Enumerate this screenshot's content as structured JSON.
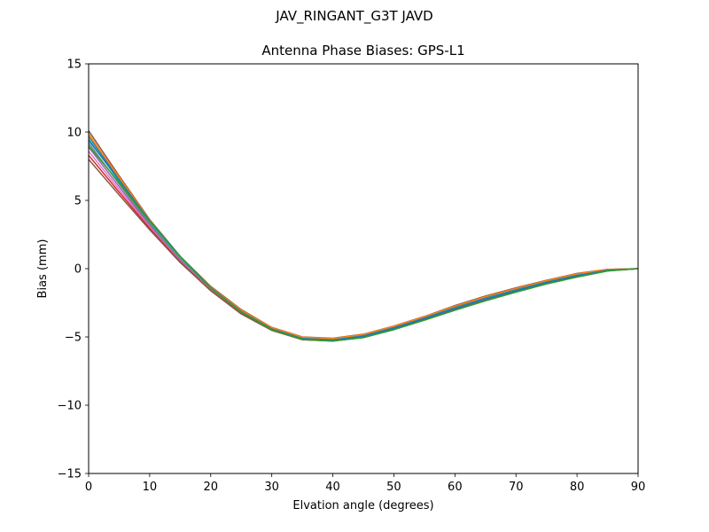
{
  "figure": {
    "suptitle": "JAV_RINGANT_G3T JAVD"
  },
  "chart_data": {
    "type": "line",
    "title": "Antenna Phase Biases: GPS-L1",
    "xlabel": "Elvation angle (degrees)",
    "ylabel": "Bias (mm)",
    "xlim": [
      0,
      90
    ],
    "ylim": [
      -15,
      15
    ],
    "xticks": [
      0,
      10,
      20,
      30,
      40,
      50,
      60,
      70,
      80,
      90
    ],
    "yticks": [
      -15,
      -10,
      -5,
      0,
      5,
      10,
      15
    ],
    "ytick_labels": [
      "−15",
      "−10",
      "−5",
      "0",
      "5",
      "10",
      "15"
    ],
    "grid": false,
    "legend": "none",
    "x": [
      0,
      5,
      10,
      15,
      20,
      25,
      30,
      35,
      40,
      45,
      50,
      55,
      60,
      65,
      70,
      75,
      80,
      85,
      90
    ],
    "series": [
      {
        "color": "#8c564b",
        "values": [
          10.1,
          6.8,
          3.6,
          0.9,
          -1.3,
          -3.0,
          -4.3,
          -5.0,
          -5.1,
          -4.8,
          -4.2,
          -3.5,
          -2.7,
          -2.0,
          -1.4,
          -0.85,
          -0.35,
          -0.05,
          0.0
        ]
      },
      {
        "color": "#bcbd22",
        "values": [
          9.9,
          6.6,
          3.5,
          0.8,
          -1.4,
          -3.1,
          -4.35,
          -5.05,
          -5.15,
          -4.85,
          -4.25,
          -3.55,
          -2.8,
          -2.1,
          -1.5,
          -0.9,
          -0.4,
          -0.08,
          0.0
        ]
      },
      {
        "color": "#1f77b4",
        "values": [
          9.7,
          6.5,
          3.4,
          0.75,
          -1.45,
          -3.15,
          -4.4,
          -5.1,
          -5.2,
          -4.9,
          -4.3,
          -3.6,
          -2.85,
          -2.15,
          -1.55,
          -0.95,
          -0.45,
          -0.1,
          0.0
        ]
      },
      {
        "color": "#17becf",
        "values": [
          9.5,
          6.4,
          3.35,
          0.7,
          -1.5,
          -3.2,
          -4.45,
          -5.12,
          -5.22,
          -4.95,
          -4.35,
          -3.65,
          -2.9,
          -2.2,
          -1.6,
          -1.0,
          -0.5,
          -0.12,
          0.0
        ]
      },
      {
        "color": "#7f7f7f",
        "values": [
          9.2,
          6.2,
          3.25,
          0.65,
          -1.52,
          -3.22,
          -4.47,
          -5.15,
          -5.25,
          -4.97,
          -4.38,
          -3.68,
          -2.95,
          -2.25,
          -1.62,
          -1.02,
          -0.52,
          -0.13,
          0.0
        ]
      },
      {
        "color": "#9467bd",
        "values": [
          8.9,
          6.0,
          3.15,
          0.6,
          -1.55,
          -3.25,
          -4.48,
          -5.17,
          -5.27,
          -5.0,
          -4.4,
          -3.7,
          -2.97,
          -2.27,
          -1.65,
          -1.05,
          -0.55,
          -0.14,
          0.0
        ]
      },
      {
        "color": "#e377c2",
        "values": [
          8.6,
          5.8,
          3.05,
          0.55,
          -1.57,
          -3.27,
          -4.5,
          -5.18,
          -5.28,
          -5.02,
          -4.42,
          -3.72,
          -3.0,
          -2.3,
          -1.67,
          -1.07,
          -0.57,
          -0.15,
          0.0
        ]
      },
      {
        "color": "#d62728",
        "values": [
          8.3,
          5.6,
          2.95,
          0.5,
          -1.6,
          -3.3,
          -4.5,
          -5.2,
          -5.3,
          -5.03,
          -4.43,
          -3.73,
          -3.02,
          -2.32,
          -1.68,
          -1.08,
          -0.58,
          -0.15,
          0.0
        ]
      },
      {
        "color": "#8c564b",
        "values": [
          8.0,
          5.4,
          2.85,
          0.45,
          -1.62,
          -3.32,
          -4.52,
          -5.2,
          -5.3,
          -5.05,
          -4.45,
          -3.75,
          -3.03,
          -2.33,
          -1.7,
          -1.1,
          -0.6,
          -0.16,
          0.0
        ]
      },
      {
        "color": "#ff7f0e",
        "values": [
          9.8,
          6.7,
          3.55,
          0.85,
          -1.35,
          -3.05,
          -4.32,
          -5.02,
          -5.12,
          -4.82,
          -4.22,
          -3.52,
          -2.75,
          -2.05,
          -1.45,
          -0.88,
          -0.38,
          -0.06,
          0.0
        ]
      },
      {
        "color": "#1f77b4",
        "values": [
          9.4,
          6.5,
          3.5,
          0.9,
          -1.4,
          -3.15,
          -4.42,
          -5.13,
          -5.23,
          -4.96,
          -4.36,
          -3.66,
          -2.92,
          -2.22,
          -1.61,
          -1.01,
          -0.51,
          -0.12,
          0.0
        ]
      },
      {
        "color": "#2ca02c",
        "values": [
          9.0,
          6.3,
          3.45,
          0.88,
          -1.42,
          -3.18,
          -4.46,
          -5.18,
          -5.3,
          -5.05,
          -4.47,
          -3.78,
          -3.05,
          -2.36,
          -1.72,
          -1.12,
          -0.62,
          -0.17,
          0.0
        ]
      }
    ]
  }
}
